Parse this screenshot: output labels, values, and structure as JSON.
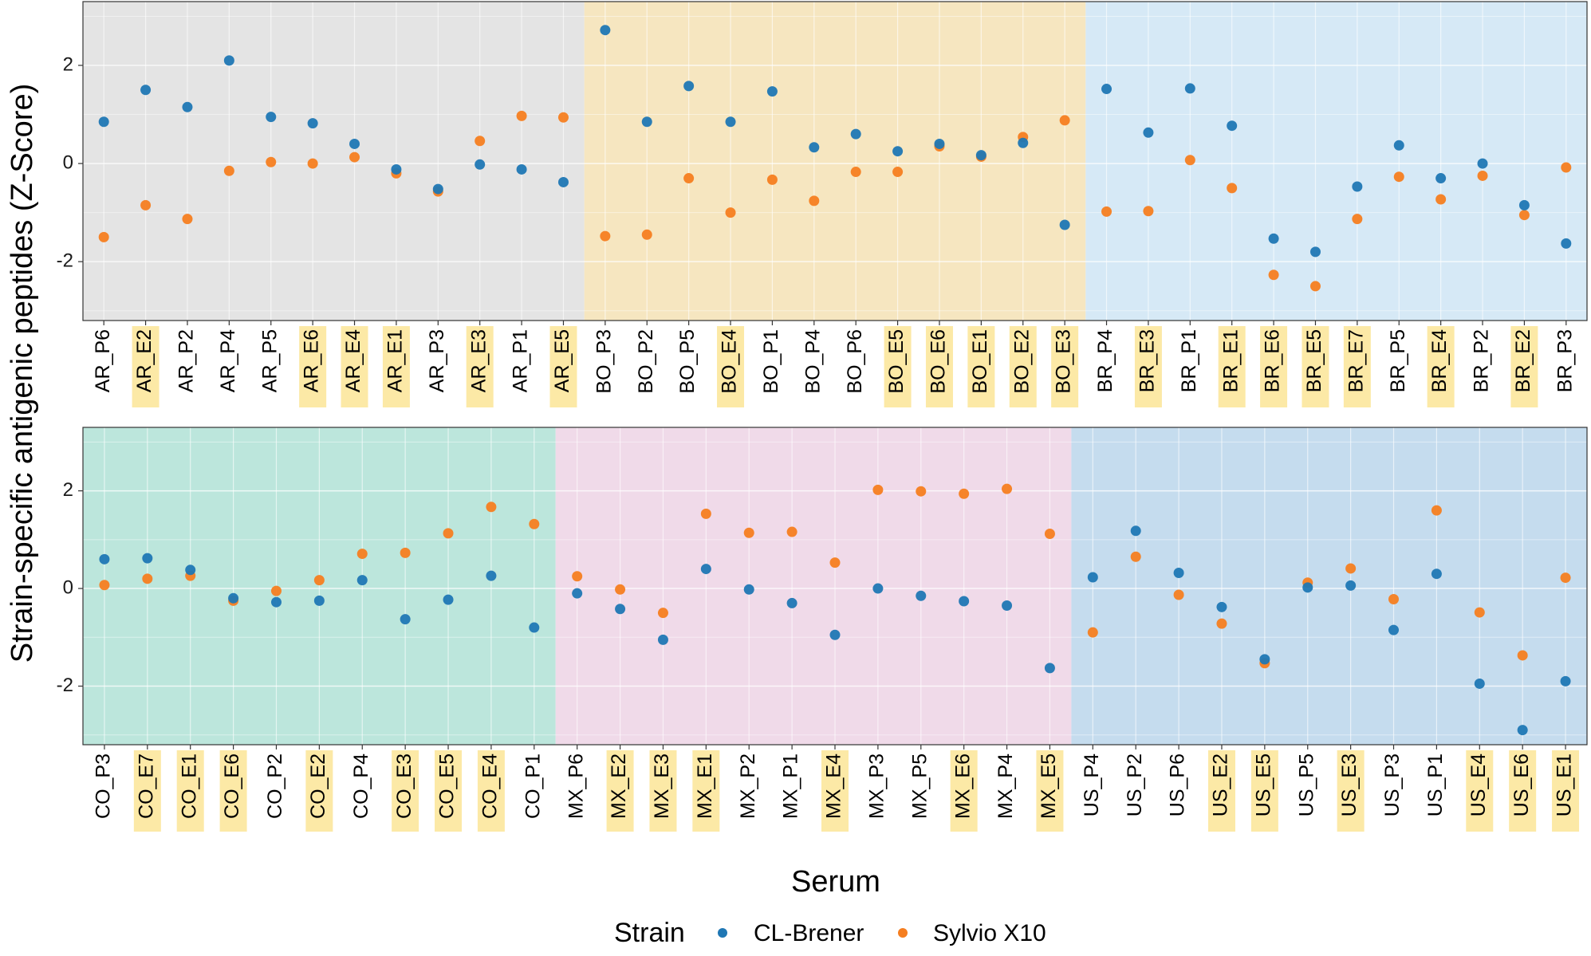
{
  "chart_data": {
    "type": "scatter",
    "ylabel": "Strain-specific antigenic peptides (Z-Score)",
    "xlabel": "Serum",
    "ylim": [
      -3.2,
      3.3
    ],
    "yticks": [
      -2,
      0,
      2
    ],
    "ytick_labels": [
      "-2",
      "0",
      "2"
    ],
    "grid": true,
    "highlight_color": "#fce9a6",
    "legend": {
      "title": "Strain",
      "position": "bottom",
      "items": [
        {
          "name": "CL-Brener",
          "color": "#1f77b4"
        },
        {
          "name": "Sylvio X10",
          "color": "#f57e20"
        }
      ]
    },
    "panels": [
      {
        "regions": [
          {
            "name": "AR",
            "start": 0,
            "end": 12,
            "color": "#e4e4e4"
          },
          {
            "name": "BO",
            "start": 12,
            "end": 24,
            "color": "#f6e6c0"
          },
          {
            "name": "BR",
            "start": 24,
            "end": 36,
            "color": "#d6e9f6"
          }
        ],
        "categories": [
          "AR_P6",
          "AR_E2",
          "AR_P2",
          "AR_P4",
          "AR_P5",
          "AR_E6",
          "AR_E4",
          "AR_E1",
          "AR_P3",
          "AR_E3",
          "AR_P1",
          "AR_E5",
          "BO_P3",
          "BO_P2",
          "BO_P5",
          "BO_E4",
          "BO_P1",
          "BO_P4",
          "BO_P6",
          "BO_E5",
          "BO_E6",
          "BO_E1",
          "BO_E2",
          "BO_E3",
          "BR_P4",
          "BR_E3",
          "BR_P1",
          "BR_E1",
          "BR_E6",
          "BR_E5",
          "BR_E7",
          "BR_P5",
          "BR_E4",
          "BR_P2",
          "BR_E2",
          "BR_P3"
        ],
        "series": [
          {
            "name": "CL-Brener",
            "values": [
              0.85,
              1.5,
              1.15,
              2.1,
              0.95,
              0.82,
              0.4,
              -0.12,
              -0.52,
              -0.02,
              -0.12,
              -0.38,
              2.72,
              0.85,
              1.58,
              0.85,
              1.47,
              0.33,
              0.6,
              0.25,
              0.4,
              0.17,
              0.42,
              -1.25,
              1.52,
              0.63,
              1.53,
              0.77,
              -1.53,
              -1.8,
              -0.47,
              0.37,
              -0.3,
              0.0,
              -0.85,
              -1.63
            ]
          },
          {
            "name": "Sylvio X10",
            "values": [
              -1.5,
              -0.85,
              -1.13,
              -0.15,
              0.03,
              0.0,
              0.13,
              -0.2,
              -0.57,
              0.46,
              0.97,
              0.94,
              -1.48,
              -1.45,
              -0.3,
              -1.0,
              -0.33,
              -0.76,
              -0.17,
              -0.17,
              0.35,
              0.14,
              0.54,
              0.88,
              -0.98,
              -0.97,
              0.07,
              -0.5,
              -2.27,
              -2.5,
              -1.13,
              -0.27,
              -0.73,
              -0.25,
              -1.05,
              -0.08
            ]
          }
        ]
      },
      {
        "regions": [
          {
            "name": "CO",
            "start": 0,
            "end": 11,
            "color": "#bce6dc"
          },
          {
            "name": "MX",
            "start": 11,
            "end": 23,
            "color": "#f0dae9"
          },
          {
            "name": "US",
            "start": 23,
            "end": 35,
            "color": "#c5dcee"
          }
        ],
        "categories": [
          "CO_P3",
          "CO_E7",
          "CO_E1",
          "CO_E6",
          "CO_P2",
          "CO_E2",
          "CO_P4",
          "CO_E3",
          "CO_E5",
          "CO_E4",
          "CO_P1",
          "MX_P6",
          "MX_E2",
          "MX_E3",
          "MX_E1",
          "MX_P2",
          "MX_P1",
          "MX_E4",
          "MX_P3",
          "MX_P5",
          "MX_E6",
          "MX_P4",
          "MX_E5",
          "US_P4",
          "US_P2",
          "US_P6",
          "US_E2",
          "US_E5",
          "US_P5",
          "US_E3",
          "US_P3",
          "US_P1",
          "US_E4",
          "US_E6",
          "US_E1"
        ],
        "series": [
          {
            "name": "CL-Brener",
            "values": [
              0.6,
              0.62,
              0.38,
              -0.2,
              -0.28,
              -0.25,
              0.17,
              -0.63,
              -0.23,
              0.26,
              -0.8,
              -0.1,
              -0.42,
              -1.05,
              0.4,
              -0.02,
              -0.3,
              -0.95,
              0.0,
              -0.15,
              -0.26,
              -0.35,
              -1.63,
              0.23,
              1.18,
              0.32,
              -0.38,
              -1.45,
              0.02,
              0.06,
              -0.85,
              0.3,
              -1.95,
              -2.9,
              -1.9
            ]
          },
          {
            "name": "Sylvio X10",
            "values": [
              0.07,
              0.2,
              0.26,
              -0.25,
              -0.05,
              0.17,
              0.71,
              0.73,
              1.13,
              1.67,
              1.32,
              0.25,
              -0.02,
              -0.5,
              1.53,
              1.14,
              1.16,
              0.53,
              2.02,
              1.99,
              1.94,
              2.04,
              1.12,
              -0.9,
              0.65,
              -0.13,
              -0.72,
              -1.53,
              0.12,
              0.41,
              -0.22,
              1.6,
              -0.49,
              -1.37,
              0.22
            ]
          }
        ]
      }
    ]
  }
}
